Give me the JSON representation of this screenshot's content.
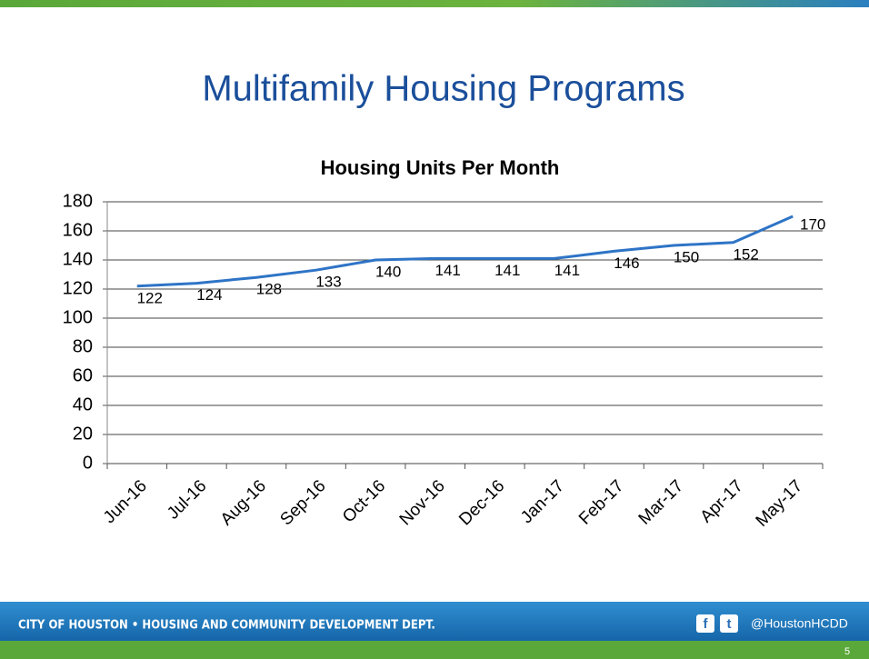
{
  "slide": {
    "title": "Multifamily Housing Programs",
    "footer": "CITY OF HOUSTON • HOUSING AND COMMUNITY DEVELOPMENT DEPT.",
    "social_icons": [
      "f",
      "t"
    ],
    "handle": "@HoustonHCDD",
    "page_number": "5"
  },
  "chart_data": {
    "type": "line",
    "title": "Housing Units Per Month",
    "categories": [
      "Jun-16",
      "Jul-16",
      "Aug-16",
      "Sep-16",
      "Oct-16",
      "Nov-16",
      "Dec-16",
      "Jan-17",
      "Feb-17",
      "Mar-17",
      "Apr-17",
      "May-17"
    ],
    "values": [
      122,
      124,
      128,
      133,
      140,
      141,
      141,
      141,
      146,
      150,
      152,
      170
    ],
    "color": "#2e74c6",
    "ylim": [
      0,
      180
    ],
    "yticks": [
      0,
      20,
      40,
      60,
      80,
      100,
      120,
      140,
      160,
      180
    ],
    "grid": true
  }
}
